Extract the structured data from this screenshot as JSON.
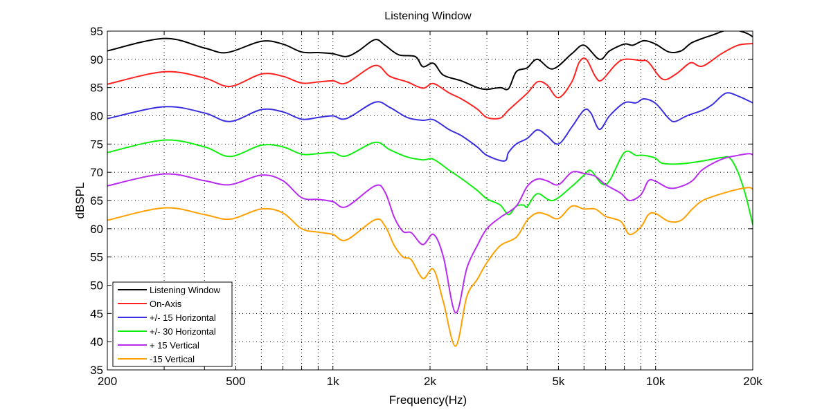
{
  "chart_data": {
    "type": "line",
    "title": "Listening Window",
    "xlabel": "Frequency(Hz)",
    "ylabel": "dBSPL",
    "xscale": "log",
    "xlim": [
      200,
      20000
    ],
    "ylim": [
      35,
      95
    ],
    "grid": true,
    "legend_position": "bottom-left",
    "x_ticks": [
      {
        "v": 200,
        "label": "200"
      },
      {
        "v": 500,
        "label": "500"
      },
      {
        "v": 1000,
        "label": "1k"
      },
      {
        "v": 2000,
        "label": "2k"
      },
      {
        "v": 5000,
        "label": "5k"
      },
      {
        "v": 10000,
        "label": "10k"
      },
      {
        "v": 20000,
        "label": "20k"
      }
    ],
    "x_minor": [
      300,
      400,
      600,
      700,
      800,
      900,
      3000,
      4000,
      6000,
      7000,
      8000,
      9000
    ],
    "y_ticks": [
      35,
      40,
      45,
      50,
      55,
      60,
      65,
      70,
      75,
      80,
      85,
      90,
      95
    ],
    "series": [
      {
        "name": "Listening Window",
        "color": "#000000",
        "points": [
          [
            200,
            91.5
          ],
          [
            300,
            93.7
          ],
          [
            400,
            92
          ],
          [
            470,
            91.2
          ],
          [
            600,
            93.2
          ],
          [
            700,
            92.7
          ],
          [
            800,
            91.3
          ],
          [
            900,
            91.2
          ],
          [
            1000,
            91
          ],
          [
            1100,
            90.5
          ],
          [
            1200,
            91.5
          ],
          [
            1350,
            93.5
          ],
          [
            1450,
            92.5
          ],
          [
            1600,
            90.8
          ],
          [
            1800,
            90.5
          ],
          [
            1900,
            88.7
          ],
          [
            2050,
            89.3
          ],
          [
            2200,
            87.2
          ],
          [
            2500,
            86.2
          ],
          [
            2800,
            85
          ],
          [
            3000,
            84.7
          ],
          [
            3300,
            85
          ],
          [
            3500,
            84.8
          ],
          [
            3700,
            87.8
          ],
          [
            4000,
            88.5
          ],
          [
            4300,
            90
          ],
          [
            4800,
            88.3
          ],
          [
            5500,
            91
          ],
          [
            6000,
            92.5
          ],
          [
            6700,
            90
          ],
          [
            7200,
            91.5
          ],
          [
            8000,
            92.7
          ],
          [
            8500,
            92.5
          ],
          [
            9200,
            93.3
          ],
          [
            10000,
            92.7
          ],
          [
            11000,
            91.3
          ],
          [
            12000,
            91.5
          ],
          [
            13000,
            93
          ],
          [
            15000,
            94.3
          ],
          [
            17000,
            95.3
          ],
          [
            19000,
            94.7
          ],
          [
            20000,
            94
          ]
        ]
      },
      {
        "name": "On-Axis",
        "color": "#ff2020",
        "points": [
          [
            200,
            85.6
          ],
          [
            300,
            87.8
          ],
          [
            400,
            86.7
          ],
          [
            480,
            85.2
          ],
          [
            600,
            87.4
          ],
          [
            700,
            87
          ],
          [
            800,
            85.8
          ],
          [
            900,
            86
          ],
          [
            1000,
            86.2
          ],
          [
            1100,
            85.8
          ],
          [
            1350,
            88.9
          ],
          [
            1500,
            87
          ],
          [
            1700,
            86
          ],
          [
            1900,
            84.9
          ],
          [
            2050,
            85.7
          ],
          [
            2300,
            84
          ],
          [
            2500,
            83
          ],
          [
            2800,
            81.2
          ],
          [
            3000,
            79.7
          ],
          [
            3300,
            79.6
          ],
          [
            3500,
            81
          ],
          [
            4000,
            84
          ],
          [
            4300,
            86
          ],
          [
            4600,
            85.5
          ],
          [
            5000,
            83.2
          ],
          [
            5500,
            86
          ],
          [
            5800,
            89.5
          ],
          [
            6100,
            90
          ],
          [
            6500,
            87
          ],
          [
            6800,
            86.3
          ],
          [
            7500,
            89
          ],
          [
            8000,
            90
          ],
          [
            9000,
            89.8
          ],
          [
            9500,
            89.5
          ],
          [
            10500,
            86.5
          ],
          [
            11500,
            87.3
          ],
          [
            12500,
            89
          ],
          [
            13000,
            89.4
          ],
          [
            14000,
            88.8
          ],
          [
            16000,
            91
          ],
          [
            18000,
            92.5
          ],
          [
            20000,
            92.8
          ]
        ]
      },
      {
        "name": "+/- 15 Horizontal",
        "color": "#3a2ee0",
        "points": [
          [
            200,
            79.5
          ],
          [
            300,
            81.6
          ],
          [
            400,
            80.5
          ],
          [
            480,
            79
          ],
          [
            600,
            81.1
          ],
          [
            700,
            80.7
          ],
          [
            800,
            79.4
          ],
          [
            900,
            79.7
          ],
          [
            1000,
            80
          ],
          [
            1100,
            79.5
          ],
          [
            1350,
            82.4
          ],
          [
            1500,
            81.5
          ],
          [
            1700,
            79.7
          ],
          [
            1900,
            79.2
          ],
          [
            2050,
            79.3
          ],
          [
            2300,
            77.5
          ],
          [
            2500,
            76.5
          ],
          [
            2800,
            74.5
          ],
          [
            3000,
            73
          ],
          [
            3400,
            72
          ],
          [
            3500,
            73.5
          ],
          [
            3700,
            75
          ],
          [
            4000,
            76
          ],
          [
            4300,
            77.5
          ],
          [
            4600,
            76.5
          ],
          [
            5000,
            75
          ],
          [
            5500,
            78
          ],
          [
            6000,
            81
          ],
          [
            6300,
            80.5
          ],
          [
            6700,
            77.6
          ],
          [
            7200,
            80
          ],
          [
            8000,
            82.3
          ],
          [
            8700,
            82.3
          ],
          [
            9200,
            83
          ],
          [
            10000,
            82.2
          ],
          [
            11000,
            79.5
          ],
          [
            11500,
            79
          ],
          [
            12500,
            80
          ],
          [
            14000,
            81
          ],
          [
            15000,
            82
          ],
          [
            16500,
            84
          ],
          [
            18000,
            83.5
          ],
          [
            20000,
            82.3
          ]
        ]
      },
      {
        "name": "+/- 30 Horizontal",
        "color": "#10ee10",
        "points": [
          [
            200,
            73.5
          ],
          [
            300,
            75.7
          ],
          [
            400,
            74.5
          ],
          [
            480,
            72.8
          ],
          [
            600,
            74.8
          ],
          [
            700,
            74.5
          ],
          [
            800,
            73.2
          ],
          [
            900,
            73.3
          ],
          [
            1000,
            73.5
          ],
          [
            1100,
            72.9
          ],
          [
            1350,
            75.3
          ],
          [
            1500,
            74
          ],
          [
            1700,
            72.7
          ],
          [
            1900,
            72.2
          ],
          [
            2050,
            72.3
          ],
          [
            2300,
            70.3
          ],
          [
            2500,
            68.9
          ],
          [
            2800,
            66.8
          ],
          [
            3000,
            65.3
          ],
          [
            3300,
            64.2
          ],
          [
            3500,
            62.5
          ],
          [
            3700,
            64
          ],
          [
            3900,
            64.2
          ],
          [
            4000,
            63.9
          ],
          [
            4300,
            66.2
          ],
          [
            4800,
            65
          ],
          [
            5500,
            67.5
          ],
          [
            6000,
            69.5
          ],
          [
            6300,
            70.3
          ],
          [
            6800,
            68
          ],
          [
            7200,
            68.5
          ],
          [
            8000,
            73.5
          ],
          [
            8700,
            73
          ],
          [
            9200,
            73
          ],
          [
            10000,
            72.5
          ],
          [
            10500,
            71.6
          ],
          [
            12000,
            71.5
          ],
          [
            14000,
            72
          ],
          [
            16000,
            72.6
          ],
          [
            17000,
            72.5
          ],
          [
            18000,
            70
          ],
          [
            19000,
            66
          ],
          [
            20000,
            60.7
          ]
        ]
      },
      {
        "name": "+ 15 Vertical",
        "color": "#b82af0",
        "points": [
          [
            200,
            67.6
          ],
          [
            300,
            69.7
          ],
          [
            400,
            68.5
          ],
          [
            480,
            67.8
          ],
          [
            600,
            69.5
          ],
          [
            700,
            68.5
          ],
          [
            800,
            65.5
          ],
          [
            900,
            65.2
          ],
          [
            1000,
            64.8
          ],
          [
            1100,
            63.9
          ],
          [
            1350,
            67.6
          ],
          [
            1450,
            66.5
          ],
          [
            1550,
            62
          ],
          [
            1650,
            59.5
          ],
          [
            1750,
            59.3
          ],
          [
            1900,
            57.2
          ],
          [
            2050,
            59
          ],
          [
            2200,
            55
          ],
          [
            2400,
            45.1
          ],
          [
            2600,
            53
          ],
          [
            2800,
            57
          ],
          [
            3000,
            60
          ],
          [
            3300,
            62
          ],
          [
            3700,
            64
          ],
          [
            4000,
            67.5
          ],
          [
            4300,
            68.8
          ],
          [
            4600,
            68.5
          ],
          [
            5000,
            67.8
          ],
          [
            5500,
            70
          ],
          [
            6000,
            69.8
          ],
          [
            6500,
            69.3
          ],
          [
            7000,
            67.8
          ],
          [
            7800,
            66.3
          ],
          [
            8300,
            65
          ],
          [
            9000,
            66
          ],
          [
            9500,
            68.5
          ],
          [
            10000,
            68.4
          ],
          [
            11000,
            67.2
          ],
          [
            12000,
            67.5
          ],
          [
            13000,
            68.5
          ],
          [
            14000,
            70.5
          ],
          [
            16000,
            72.3
          ],
          [
            18000,
            73
          ],
          [
            19500,
            73.3
          ],
          [
            20000,
            73.1
          ]
        ]
      },
      {
        "name": "-15 Vertical",
        "color": "#ffa000",
        "points": [
          [
            200,
            61.5
          ],
          [
            300,
            63.7
          ],
          [
            400,
            62.5
          ],
          [
            480,
            61.7
          ],
          [
            600,
            63.5
          ],
          [
            700,
            62.8
          ],
          [
            800,
            60
          ],
          [
            900,
            59.4
          ],
          [
            1000,
            59
          ],
          [
            1100,
            58
          ],
          [
            1350,
            61.6
          ],
          [
            1450,
            60.5
          ],
          [
            1550,
            57
          ],
          [
            1650,
            55
          ],
          [
            1750,
            54.5
          ],
          [
            1900,
            51.2
          ],
          [
            2050,
            52.8
          ],
          [
            2200,
            47
          ],
          [
            2400,
            39.2
          ],
          [
            2600,
            48
          ],
          [
            2800,
            51
          ],
          [
            3000,
            54
          ],
          [
            3300,
            57
          ],
          [
            3700,
            58.5
          ],
          [
            4000,
            61.5
          ],
          [
            4300,
            62.8
          ],
          [
            4600,
            62.5
          ],
          [
            5000,
            61.8
          ],
          [
            5500,
            64
          ],
          [
            6000,
            63.5
          ],
          [
            6500,
            63.5
          ],
          [
            7000,
            62.2
          ],
          [
            7800,
            61.3
          ],
          [
            8300,
            59
          ],
          [
            9000,
            60.3
          ],
          [
            9500,
            62.5
          ],
          [
            10000,
            62.7
          ],
          [
            11000,
            61.3
          ],
          [
            12000,
            61.5
          ],
          [
            13000,
            63.5
          ],
          [
            14000,
            65
          ],
          [
            16000,
            66.2
          ],
          [
            18000,
            67
          ],
          [
            19500,
            67.3
          ],
          [
            20000,
            67
          ]
        ]
      }
    ]
  }
}
